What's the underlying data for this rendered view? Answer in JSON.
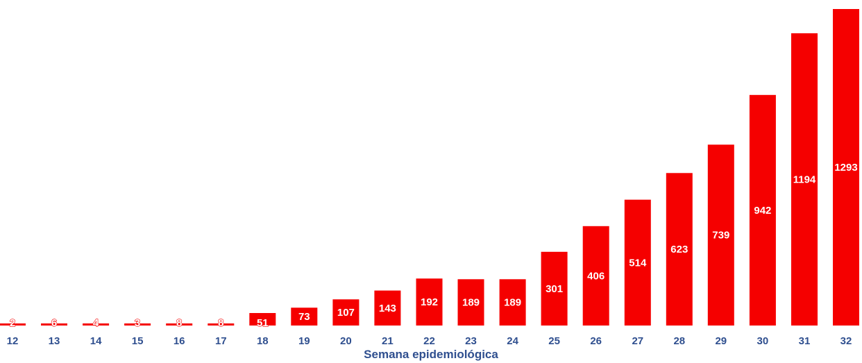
{
  "chart_data": {
    "type": "bar",
    "title": "",
    "xlabel": "Semana epidemiológica",
    "ylabel": "",
    "categories": [
      "12",
      "13",
      "14",
      "15",
      "16",
      "17",
      "18",
      "19",
      "20",
      "21",
      "22",
      "23",
      "24",
      "25",
      "26",
      "27",
      "28",
      "29",
      "30",
      "31",
      "32"
    ],
    "values": [
      2,
      6,
      4,
      3,
      8,
      8,
      51,
      73,
      107,
      143,
      192,
      189,
      189,
      301,
      406,
      514,
      623,
      739,
      942,
      1194,
      1293
    ],
    "ylim": [
      0,
      1293
    ],
    "grid": false,
    "legend": "none",
    "data_labels": true
  },
  "colors": {
    "bar": "#f50000",
    "data_label_inside": "#ffffff",
    "data_label_small": "#f50000",
    "axis_text": "#2f4f8f"
  }
}
